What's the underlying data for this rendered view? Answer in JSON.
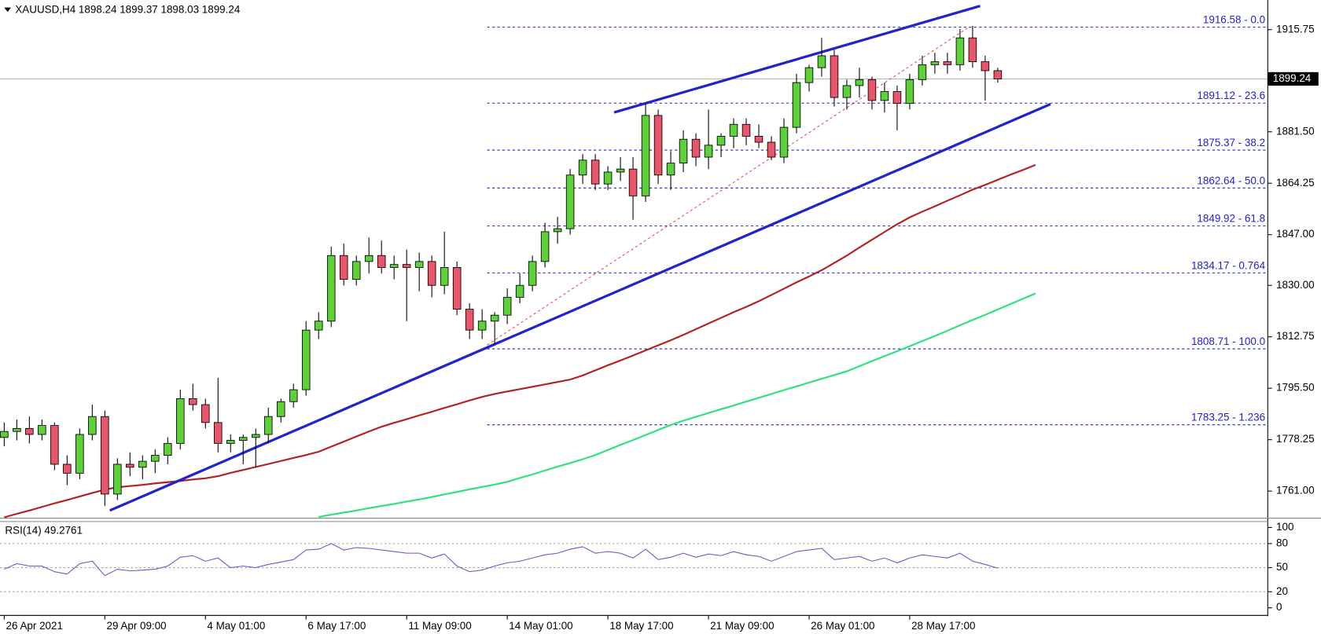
{
  "chart_data": [
    {
      "type": "candlestick",
      "title": "XAUUSD,H4  1898.24 1899.37 1898.03 1899.24",
      "ylim": [
        1752.2,
        1925.7
      ],
      "yticks": [
        1915.75,
        {
          "value": 1881.5,
          "label": "1881.50"
        },
        1864.25,
        {
          "value": 1847,
          "label": "1847.00"
        },
        {
          "value": 1830,
          "label": "1830.00"
        },
        1812.75,
        {
          "value": 1795.5,
          "label": "1795.50"
        },
        1778.25,
        {
          "value": 1761,
          "label": "1761.00"
        }
      ],
      "last_price": 1899.24,
      "up_color": "#5fcf3c",
      "down_color": "#e8566c",
      "candles": {
        "open": [
          1779,
          1781,
          1782,
          1780,
          1783,
          1770,
          1767,
          1780,
          1786,
          1760,
          1770,
          1769,
          1771,
          1773,
          1777,
          1792,
          1790,
          1784,
          1777,
          1778,
          1779,
          1780,
          1786,
          1791,
          1795,
          1815,
          1818,
          1840,
          1832,
          1838,
          1840,
          1836,
          1837,
          1836,
          1838,
          1830,
          1836,
          1822,
          1815,
          1818,
          1820,
          1826,
          1830,
          1838,
          1848,
          1849,
          1867,
          1872,
          1864,
          1868,
          1869,
          1860,
          1887,
          1867,
          1871,
          1879,
          1873,
          1877,
          1880,
          1884,
          1880,
          1878,
          1873,
          1883,
          1898,
          1903,
          1907,
          1893,
          1897,
          1899,
          1892,
          1895,
          1891,
          1899,
          1904,
          1905,
          1904,
          1913,
          1905,
          1902,
          null,
          null,
          null
        ],
        "high": [
          1784,
          1785,
          1786,
          1785,
          1784,
          1773,
          1782,
          1790,
          1788,
          1772,
          1774,
          1773,
          1775,
          1779,
          1795,
          1797,
          1792,
          1799,
          1780,
          1780,
          1782,
          1789,
          1792,
          1797,
          1818,
          1821,
          1843,
          1844,
          1840,
          1846,
          1845,
          1840,
          1842,
          1841,
          1840,
          1848,
          1838,
          1824,
          1822,
          1821,
          1829,
          1834,
          1840,
          1851,
          1853,
          1869,
          1874,
          1874,
          1870,
          1873,
          1873,
          1891,
          1889,
          1875,
          1882,
          1881,
          1889,
          1881,
          1886,
          1886,
          1884,
          1880,
          1886,
          1901,
          1904,
          1913,
          1909,
          1899,
          1903,
          1900,
          1898,
          1897,
          1901,
          1907,
          1908,
          1908,
          1916,
          1917,
          1907,
          1903,
          null,
          null,
          null
        ],
        "low": [
          1776,
          1778,
          1777,
          1778,
          1768,
          1763,
          1765,
          1778,
          1756,
          1758,
          1766,
          1765,
          1767,
          1770,
          1775,
          1788,
          1782,
          1774,
          1774,
          1770,
          1769,
          1777,
          1784,
          1789,
          1793,
          1812,
          1816,
          1830,
          1830,
          1834,
          1834,
          1832,
          1818,
          1828,
          1826,
          1827,
          1820,
          1812,
          1812,
          1810,
          1817,
          1824,
          1828,
          1836,
          1844,
          1847,
          1864,
          1862,
          1862,
          1865,
          1852,
          1858,
          1864,
          1862,
          1868,
          1870,
          1869,
          1873,
          1876,
          1877,
          1876,
          1872,
          1871,
          1881,
          1895,
          1900,
          1890,
          1889,
          1893,
          1889,
          1888,
          1882,
          1889,
          1897,
          1901,
          1901,
          1902,
          1903,
          1892,
          1898,
          null,
          null,
          null
        ],
        "close": [
          1781,
          1782,
          1780,
          1783,
          1770,
          1767,
          1780,
          1786,
          1760,
          1770,
          1769,
          1771,
          1773,
          1777,
          1792,
          1790,
          1784,
          1777,
          1778,
          1779,
          1780,
          1786,
          1791,
          1795,
          1815,
          1818,
          1840,
          1832,
          1838,
          1840,
          1836,
          1837,
          1836,
          1838,
          1830,
          1836,
          1822,
          1815,
          1818,
          1820,
          1826,
          1830,
          1838,
          1848,
          1849,
          1867,
          1872,
          1864,
          1868,
          1869,
          1860,
          1887,
          1867,
          1871,
          1879,
          1873,
          1877,
          1880,
          1884,
          1880,
          1878,
          1873,
          1883,
          1898,
          1903,
          1907,
          1893,
          1897,
          1899,
          1892,
          1895,
          1891,
          1899,
          1904,
          1905,
          1904,
          1913,
          1905,
          1902,
          1899.24,
          null,
          null,
          null
        ]
      },
      "moving_averages": [
        {
          "color": "#b22222",
          "values": [
            1752.2,
            1753.4,
            1754.5,
            1755.7,
            1756.9,
            1758.0,
            1759.2,
            1760.4,
            1761.5,
            1762.3,
            1762.7,
            1763.1,
            1763.6,
            1764.0,
            1764.4,
            1764.9,
            1765.3,
            1766.0,
            1767.1,
            1768.1,
            1769.1,
            1770.1,
            1771.1,
            1772.1,
            1773.1,
            1774.2,
            1775.9,
            1777.6,
            1779.3,
            1781.0,
            1782.6,
            1783.9,
            1785.1,
            1786.4,
            1787.6,
            1788.9,
            1790.1,
            1791.4,
            1792.6,
            1793.6,
            1794.4,
            1795.2,
            1796.0,
            1796.8,
            1797.6,
            1798.4,
            1799.8,
            1801.5,
            1803.2,
            1804.8,
            1806.5,
            1808.2,
            1809.9,
            1811.6,
            1813.4,
            1815.3,
            1817.2,
            1819.1,
            1821.0,
            1822.8,
            1824.7,
            1826.8,
            1828.9,
            1831.0,
            1833.0,
            1835.1,
            1837.5,
            1840.0,
            1842.7,
            1845.3,
            1847.9,
            1850.5,
            1852.8,
            1854.7,
            1856.5,
            1858.4,
            1860.2,
            1862.1,
            1863.7,
            1865.4,
            1867.1,
            1868.7,
            1870.4
          ]
        },
        {
          "color": "#2ee27a",
          "values": [
            null,
            null,
            null,
            null,
            null,
            null,
            null,
            null,
            null,
            null,
            null,
            null,
            null,
            null,
            null,
            null,
            null,
            null,
            null,
            null,
            null,
            null,
            null,
            null,
            null,
            1752.3,
            1753.1,
            1753.8,
            1754.5,
            1755.3,
            1756.0,
            1756.7,
            1757.5,
            1758.2,
            1759.0,
            1759.9,
            1760.7,
            1761.6,
            1762.4,
            1763.2,
            1764.1,
            1765.4,
            1766.6,
            1767.9,
            1769.2,
            1770.4,
            1771.7,
            1773.1,
            1774.8,
            1776.5,
            1778.1,
            1779.8,
            1781.5,
            1783.2,
            1784.6,
            1785.9,
            1787.2,
            1788.5,
            1789.7,
            1791.0,
            1792.3,
            1793.6,
            1794.9,
            1796.1,
            1797.4,
            1798.7,
            1799.9,
            1801.2,
            1802.9,
            1804.6,
            1806.3,
            1807.9,
            1809.6,
            1811.3,
            1813.0,
            1814.8,
            1816.6,
            1818.4,
            1820.1,
            1821.9,
            1823.7,
            1825.5,
            1827.3
          ]
        }
      ],
      "trendlines": [
        {
          "color": "#1f25c9",
          "x": [
            48.5,
            77.6
          ],
          "y": [
            1888,
            1923.7
          ]
        },
        {
          "color": "#1f25c9",
          "x": [
            8.4,
            83.2
          ],
          "y": [
            1754.5,
            1890.8
          ]
        }
      ],
      "dashed_line": {
        "color": "#e05050",
        "x": [
          38.4,
          76.6
        ],
        "y": [
          1810,
          1916.3
        ]
      },
      "fib_start": 38.4,
      "fib_color": "#2222cc",
      "fib_levels": [
        {
          "value": 1916.58,
          "label": "1916.58 - 0.0"
        },
        {
          "value": 1891.12,
          "label": "1891.12 - 23.6"
        },
        {
          "value": 1875.37,
          "label": "1875.37 - 38.2"
        },
        {
          "value": 1862.64,
          "label": "1862.64 - 50.0"
        },
        {
          "value": 1849.92,
          "label": "1849.92 - 61.8"
        },
        {
          "value": 1834.17,
          "label": "1834.17 - 0.764"
        },
        {
          "value": 1808.71,
          "label": "1808.71 - 100.0"
        },
        {
          "value": 1783.25,
          "label": "1783.25 - 1.236"
        }
      ]
    },
    {
      "type": "line",
      "title": "RSI(14) 49.2761",
      "color": "#7b52c8",
      "ylim": [
        -8.4,
        107.4
      ],
      "yticks": [
        100,
        80,
        50,
        20,
        0
      ],
      "levels": [
        80,
        50,
        20
      ],
      "categories": [
        "26 Apr 2021",
        null,
        null,
        null,
        null,
        null,
        null,
        null,
        "29 Apr 09:00",
        null,
        null,
        null,
        null,
        null,
        null,
        null,
        "4 May 01:00",
        null,
        null,
        null,
        null,
        null,
        null,
        null,
        "6 May 17:00",
        null,
        null,
        null,
        null,
        null,
        null,
        null,
        "11 May 09:00",
        null,
        null,
        null,
        null,
        null,
        null,
        null,
        "14 May 01:00",
        null,
        null,
        null,
        null,
        null,
        null,
        null,
        "18 May 17:00",
        null,
        null,
        null,
        null,
        null,
        null,
        null,
        "21 May 09:00",
        null,
        null,
        null,
        null,
        null,
        null,
        null,
        "26 May 01:00",
        null,
        null,
        null,
        null,
        null,
        null,
        null,
        "28 May 17:00",
        null,
        null,
        null,
        null,
        null,
        null,
        null,
        null,
        null,
        null
      ],
      "values": [
        48,
        55,
        52,
        52,
        45,
        42,
        55,
        58,
        40,
        48,
        46,
        47,
        48,
        52,
        63,
        65,
        58,
        62,
        50,
        52,
        50,
        54,
        57,
        60,
        72,
        73,
        80,
        72,
        75,
        74,
        72,
        70,
        68,
        68,
        62,
        67,
        52,
        45,
        47,
        52,
        56,
        58,
        62,
        66,
        68,
        73,
        76,
        68,
        70,
        68,
        62,
        73,
        60,
        63,
        68,
        63,
        67,
        65,
        70,
        66,
        64,
        58,
        64,
        70,
        72,
        74,
        60,
        62,
        64,
        58,
        62,
        56,
        62,
        66,
        64,
        62,
        68,
        58,
        54,
        49.2761,
        null,
        null,
        null
      ]
    }
  ]
}
